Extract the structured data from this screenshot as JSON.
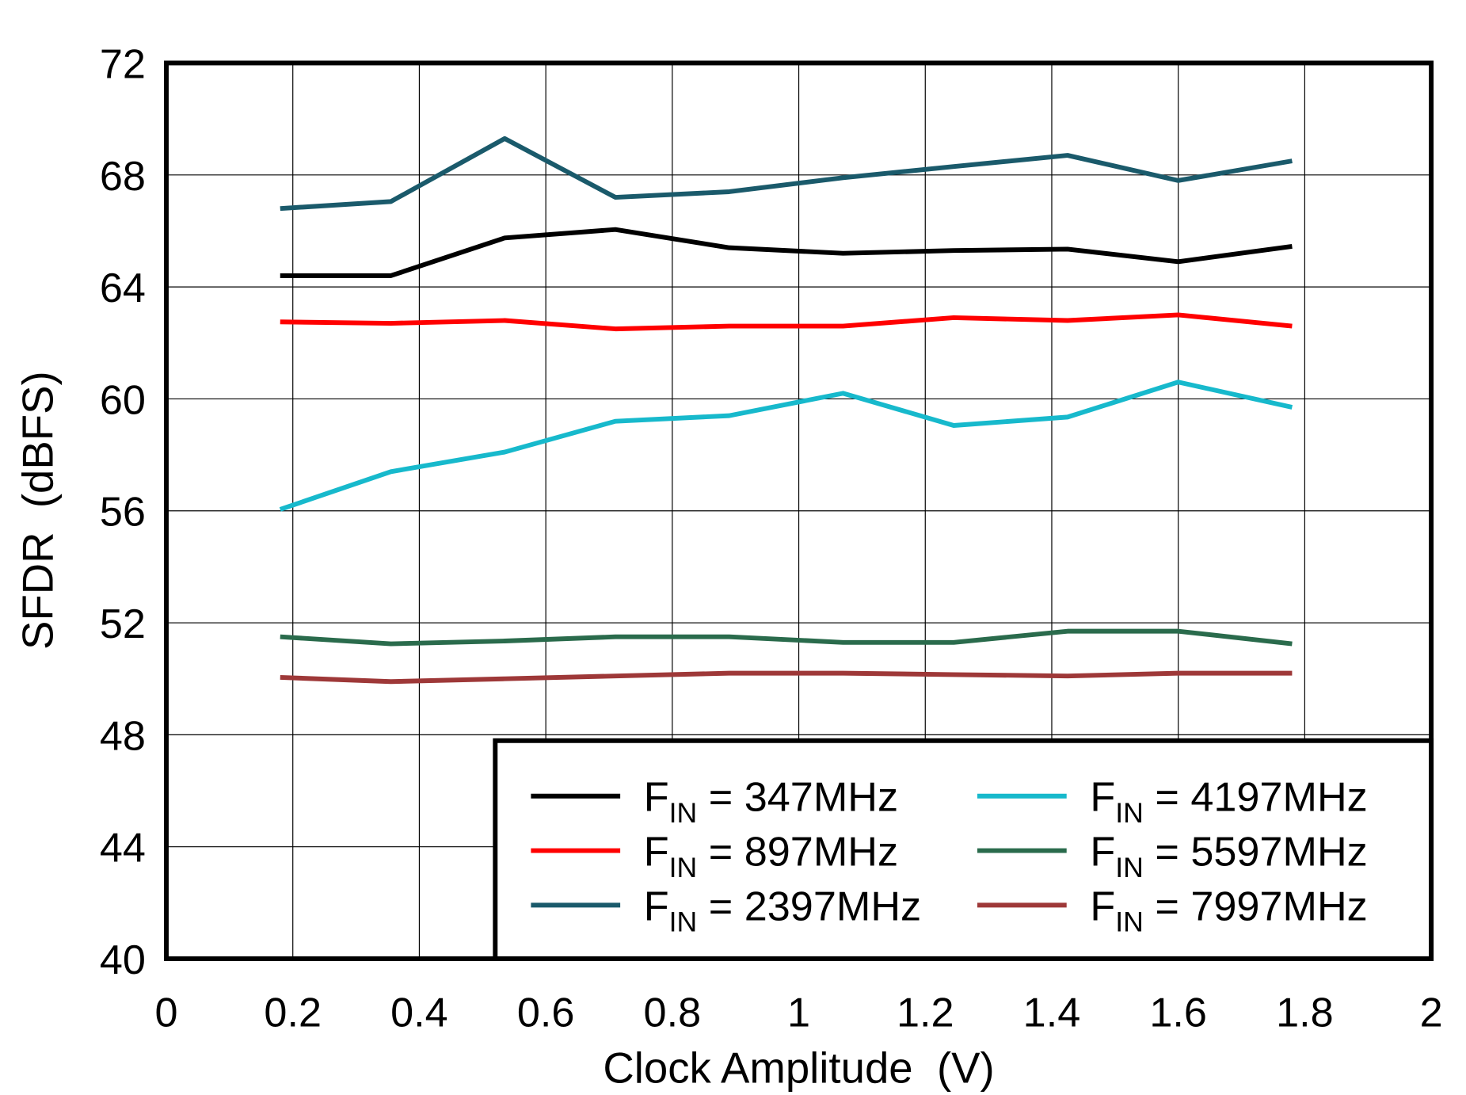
{
  "chart_data": {
    "type": "line",
    "title": "",
    "xlabel": "Clock Amplitude  (V)",
    "ylabel": "SFDR  (dBFS)",
    "xlim": [
      0,
      2
    ],
    "ylim": [
      40,
      72
    ],
    "xticks": [
      0,
      0.2,
      0.4,
      0.6,
      0.8,
      1,
      1.2,
      1.4,
      1.6,
      1.8,
      2
    ],
    "xtick_labels": [
      "0",
      "0.2",
      "0.4",
      "0.6",
      "0.8",
      "1",
      "1.2",
      "1.4",
      "1.6",
      "1.8",
      "2"
    ],
    "yticks": [
      40,
      44,
      48,
      52,
      56,
      60,
      64,
      68,
      72
    ],
    "ytick_labels": [
      "40",
      "44",
      "48",
      "52",
      "56",
      "60",
      "64",
      "68",
      "72"
    ],
    "grid": true,
    "legend_position": "bottom-right",
    "x": [
      0.18,
      0.355,
      0.535,
      0.71,
      0.89,
      1.07,
      1.245,
      1.425,
      1.6,
      1.78
    ],
    "series": [
      {
        "name": "FIN = 347MHz",
        "symbol": "F",
        "sub": "IN",
        "rest": " = 347MHz",
        "color": "#000000",
        "values": [
          64.4,
          64.4,
          65.75,
          66.05,
          65.4,
          65.2,
          65.3,
          65.35,
          64.9,
          65.45
        ]
      },
      {
        "name": "FIN = 897MHz",
        "symbol": "F",
        "sub": "IN",
        "rest": " = 897MHz",
        "color": "#ff0000",
        "values": [
          62.75,
          62.7,
          62.8,
          62.5,
          62.6,
          62.6,
          62.9,
          62.8,
          63.0,
          62.6
        ]
      },
      {
        "name": "FIN = 2397MHz",
        "symbol": "F",
        "sub": "IN",
        "rest": " = 2397MHz",
        "color": "#1a5a6b",
        "values": [
          66.8,
          67.05,
          69.3,
          67.2,
          67.4,
          67.9,
          68.3,
          68.7,
          67.8,
          68.5
        ]
      },
      {
        "name": "FIN = 4197MHz",
        "symbol": "F",
        "sub": "IN",
        "rest": " = 4197MHz",
        "color": "#17b9cc",
        "values": [
          56.05,
          57.4,
          58.1,
          59.2,
          59.4,
          60.2,
          59.05,
          59.35,
          60.6,
          59.7
        ]
      },
      {
        "name": "FIN = 5597MHz",
        "symbol": "F",
        "sub": "IN",
        "rest": " = 5597MHz",
        "color": "#2a6b4c",
        "values": [
          51.5,
          51.25,
          51.35,
          51.5,
          51.5,
          51.3,
          51.3,
          51.7,
          51.7,
          51.25
        ]
      },
      {
        "name": "FIN = 7997MHz",
        "symbol": "F",
        "sub": "IN",
        "rest": " = 7997MHz",
        "color": "#9e3838",
        "values": [
          50.05,
          49.9,
          50.0,
          50.1,
          50.2,
          50.2,
          50.15,
          50.1,
          50.2,
          50.2
        ]
      }
    ]
  }
}
